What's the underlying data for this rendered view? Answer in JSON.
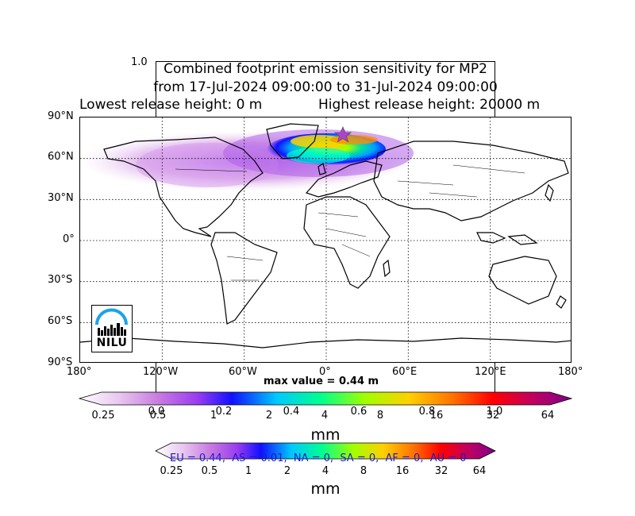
{
  "title": {
    "line1": "Combined footprint emission sensitivity for MP2",
    "line2": "from 17-Jul-2024 09:00:00 to 31-Jul-2024 09:00:00",
    "line3_left": "Lowest release height: 0 m",
    "line3_right": "Highest release height: 20000 m"
  },
  "stray_tick": "1.0",
  "lat_ticks": [
    "90°N",
    "60°N",
    "30°N",
    "0°",
    "30°S",
    "60°S",
    "90°S"
  ],
  "lon_ticks": [
    "180°",
    "120°W",
    "60°W",
    "0°",
    "60°E",
    "120°E",
    "180°"
  ],
  "max_value": "max value = 0.44 m",
  "logo": {
    "text": "NILU"
  },
  "colorbar1": {
    "labels": [
      "0.25",
      "0.5",
      "1",
      "2",
      "4",
      "8",
      "16",
      "32",
      "64"
    ],
    "overlay_labels": [
      "0.0",
      "0.2",
      "0.4",
      "0.6",
      "0.8",
      "1.0"
    ],
    "unit": "mm"
  },
  "colorbar2": {
    "labels": [
      "0.25",
      "0.5",
      "1",
      "2",
      "4",
      "8",
      "16",
      "32",
      "64"
    ],
    "unit": "mm"
  },
  "region_summary": "EU = 0.44,  AS = 0.01,  NA = 0,  SA = 0,  AF = 0,  AU = 0",
  "colors": {
    "scale": [
      "#ffffff",
      "#e8c8f0",
      "#c87ce0",
      "#9a3cf0",
      "#1010ff",
      "#00c8ff",
      "#00ff90",
      "#a0ff00",
      "#ffd000",
      "#ff7000",
      "#ff0000",
      "#c00060",
      "#80008a"
    ],
    "region_text": "#1a1acc",
    "star": "#b040d0"
  }
}
